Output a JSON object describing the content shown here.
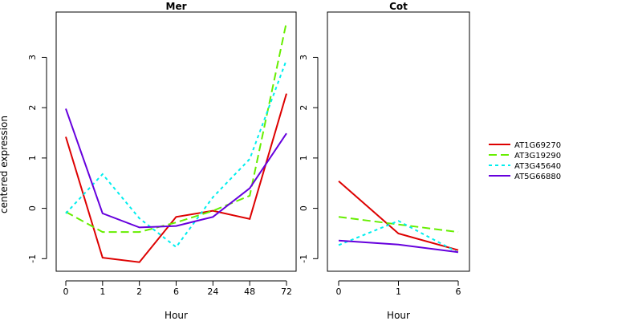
{
  "y_axis_label": "centered expression",
  "legend": [
    {
      "label": "AT1G69270",
      "color": "#dd0000",
      "dash": "solid"
    },
    {
      "label": "AT3G19290",
      "color": "#66ee00",
      "dash": "dashed"
    },
    {
      "label": "AT3G45640",
      "color": "#00eeee",
      "dash": "dotted"
    },
    {
      "label": "AT5G66880",
      "color": "#6600dd",
      "dash": "solid"
    }
  ],
  "chart_data": [
    {
      "type": "line",
      "title": "Mer",
      "xlabel": "Hour",
      "ylabel": "centered expression",
      "categories": [
        "0",
        "1",
        "2",
        "6",
        "24",
        "48",
        "72"
      ],
      "ylim": [
        -1.25,
        3.9
      ],
      "yticks": [
        -1,
        0,
        1,
        2,
        3
      ],
      "grid": false,
      "legend_position": "right, outside plots",
      "series": [
        {
          "name": "AT1G69270",
          "color": "#dd0000",
          "dash": "solid",
          "values": [
            1.42,
            -0.98,
            -1.07,
            -0.17,
            -0.05,
            -0.21,
            2.28
          ]
        },
        {
          "name": "AT3G19290",
          "color": "#66ee00",
          "dash": "dashed",
          "values": [
            -0.07,
            -0.47,
            -0.47,
            -0.28,
            -0.05,
            0.25,
            3.7
          ]
        },
        {
          "name": "AT3G45640",
          "color": "#00eeee",
          "dash": "dotted",
          "values": [
            -0.1,
            0.68,
            -0.2,
            -0.77,
            0.22,
            0.98,
            2.95
          ]
        },
        {
          "name": "AT5G66880",
          "color": "#6600dd",
          "dash": "solid",
          "values": [
            1.98,
            -0.1,
            -0.38,
            -0.35,
            -0.17,
            0.4,
            1.49
          ]
        }
      ]
    },
    {
      "type": "line",
      "title": "Cot",
      "xlabel": "Hour",
      "ylabel": "",
      "categories": [
        "0",
        "1",
        "6"
      ],
      "ylim": [
        -1.25,
        3.9
      ],
      "yticks": [
        -1,
        0,
        1,
        2,
        3
      ],
      "grid": false,
      "series": [
        {
          "name": "AT1G69270",
          "color": "#dd0000",
          "dash": "solid",
          "values": [
            0.54,
            -0.5,
            -0.83
          ]
        },
        {
          "name": "AT3G19290",
          "color": "#66ee00",
          "dash": "dashed",
          "values": [
            -0.17,
            -0.32,
            -0.47
          ]
        },
        {
          "name": "AT3G45640",
          "color": "#00eeee",
          "dash": "dotted",
          "values": [
            -0.73,
            -0.25,
            -0.88
          ]
        },
        {
          "name": "AT5G66880",
          "color": "#6600dd",
          "dash": "solid",
          "values": [
            -0.64,
            -0.72,
            -0.87
          ]
        }
      ]
    }
  ]
}
